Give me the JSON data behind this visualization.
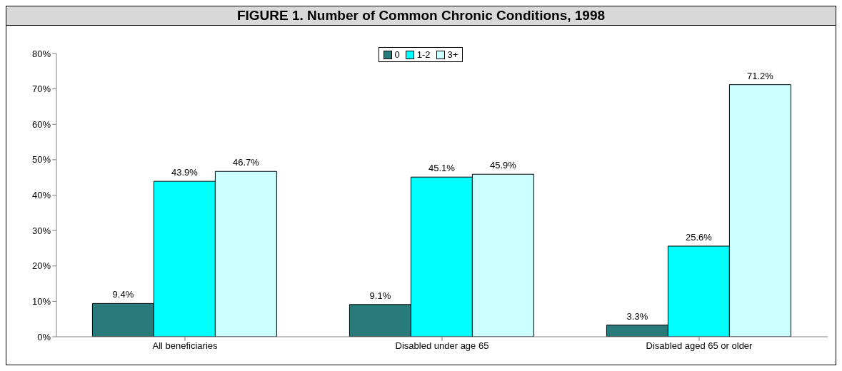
{
  "chart_data": {
    "type": "bar",
    "title": "FIGURE 1. Number of Common Chronic Conditions, 1998",
    "categories": [
      "All beneficiaries",
      "Disabled under age 65",
      "Disabled aged 65 or older"
    ],
    "series": [
      {
        "name": "0",
        "color": "#297a7a",
        "values": [
          9.4,
          9.1,
          3.3
        ],
        "value_labels": [
          "9.4%",
          "9.1%",
          "3.3%"
        ]
      },
      {
        "name": "1-2",
        "color": "#00ffff",
        "values": [
          43.9,
          45.1,
          25.6
        ],
        "value_labels": [
          "43.9%",
          "45.1%",
          "25.6%"
        ]
      },
      {
        "name": "3+",
        "color": "#ccffff",
        "values": [
          46.7,
          45.9,
          71.2
        ],
        "value_labels": [
          "46.7%",
          "45.9%",
          "71.2%"
        ]
      }
    ],
    "ylim": [
      0,
      80
    ],
    "yticks": [
      {
        "value": 0,
        "label": "0%"
      },
      {
        "value": 10,
        "label": "10%"
      },
      {
        "value": 20,
        "label": "20%"
      },
      {
        "value": 30,
        "label": "30%"
      },
      {
        "value": 40,
        "label": "40%"
      },
      {
        "value": 50,
        "label": "50%"
      },
      {
        "value": 60,
        "label": "60%"
      },
      {
        "value": 70,
        "label": "70%"
      },
      {
        "value": 80,
        "label": "80%"
      }
    ],
    "legend": "top"
  }
}
